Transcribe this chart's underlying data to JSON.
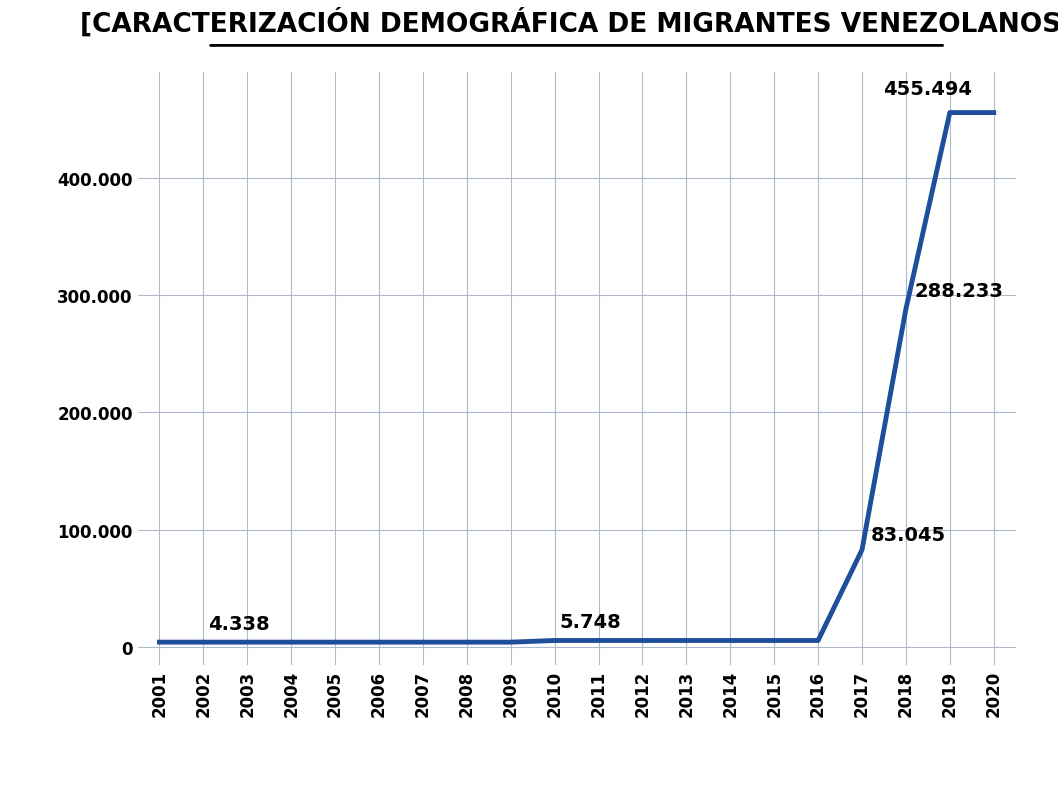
{
  "title": "[CARACTERIZACIÓN DEMOGRÁFICA DE MIGRANTES VENEZOLANOS]",
  "years": [
    2001,
    2002,
    2003,
    2004,
    2005,
    2006,
    2007,
    2008,
    2009,
    2010,
    2011,
    2012,
    2013,
    2014,
    2015,
    2016,
    2017,
    2018,
    2019,
    2020
  ],
  "values": [
    4338,
    4338,
    4338,
    4338,
    4338,
    4338,
    4338,
    4338,
    4338,
    5748,
    5748,
    5748,
    5748,
    5748,
    5748,
    5748,
    83045,
    288233,
    455494,
    455494
  ],
  "labeled_points": {
    "2002": 4338,
    "2010": 5748,
    "2017": 83045,
    "2018": 288233,
    "2019": 455494
  },
  "label_texts": {
    "2002": "4.338",
    "2010": "5.748",
    "2017": "83.045",
    "2018": "288.233",
    "2019": "455.494"
  },
  "label_offsets_x": {
    "2002": 0.1,
    "2010": 0.1,
    "2017": 0.2,
    "2018": 0.2,
    "2019": -0.5
  },
  "label_offsets_y": {
    "2002": 8000,
    "2010": 8000,
    "2017": 5000,
    "2018": 8000,
    "2019": 12000
  },
  "label_ha": {
    "2002": "left",
    "2010": "left",
    "2017": "left",
    "2018": "left",
    "2019": "center"
  },
  "line_color": "#1F4E9B",
  "line_width": 3.5,
  "yticks": [
    0,
    100000,
    200000,
    300000,
    400000
  ],
  "ytick_labels": [
    "0",
    "100.000",
    "200.000",
    "300.000",
    "400.000"
  ],
  "ylim": [
    -15000,
    490000
  ],
  "xlim_left": 2000.5,
  "xlim_right": 2020.5,
  "background_color": "#FFFFFF",
  "plot_bg_color": "#FFFFFF",
  "grid_color": "#B0B8CC",
  "title_fontsize": 19,
  "tick_fontsize": 12,
  "label_fontsize": 14,
  "header_color": "#7A9CC2",
  "footer_color": "#7A9CC2"
}
